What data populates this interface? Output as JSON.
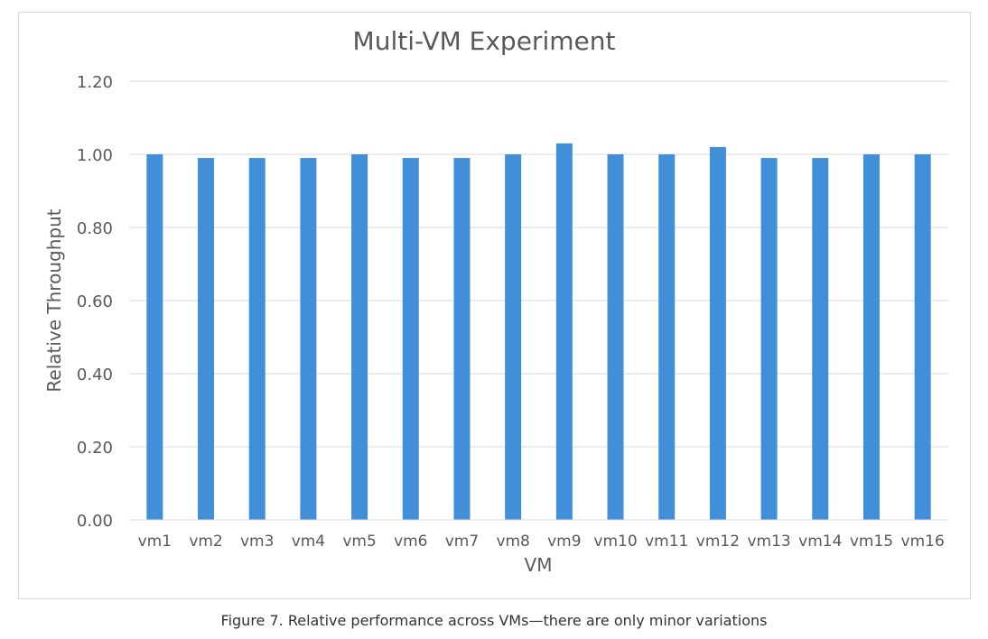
{
  "chart_data": {
    "type": "bar",
    "title": "Multi-VM Experiment",
    "xlabel": "VM",
    "ylabel": "Relative Throughput",
    "categories": [
      "vm1",
      "vm2",
      "vm3",
      "vm4",
      "vm5",
      "vm6",
      "vm7",
      "vm8",
      "vm9",
      "vm10",
      "vm11",
      "vm12",
      "vm13",
      "vm14",
      "vm15",
      "vm16"
    ],
    "values": [
      1.0,
      0.99,
      0.99,
      0.99,
      1.0,
      0.99,
      0.99,
      1.0,
      1.03,
      1.0,
      1.0,
      1.02,
      0.99,
      0.99,
      1.0,
      1.0
    ],
    "ylim": [
      0,
      1.2
    ],
    "yticks": [
      "0.00",
      "0.20",
      "0.40",
      "0.60",
      "0.80",
      "1.00",
      "1.20"
    ],
    "grid": true,
    "bar_color": "#418fd8",
    "grid_color": "#d9d9d9",
    "text_color": "#595959"
  },
  "caption": "Figure 7. Relative performance across VMs—there are only minor variations"
}
